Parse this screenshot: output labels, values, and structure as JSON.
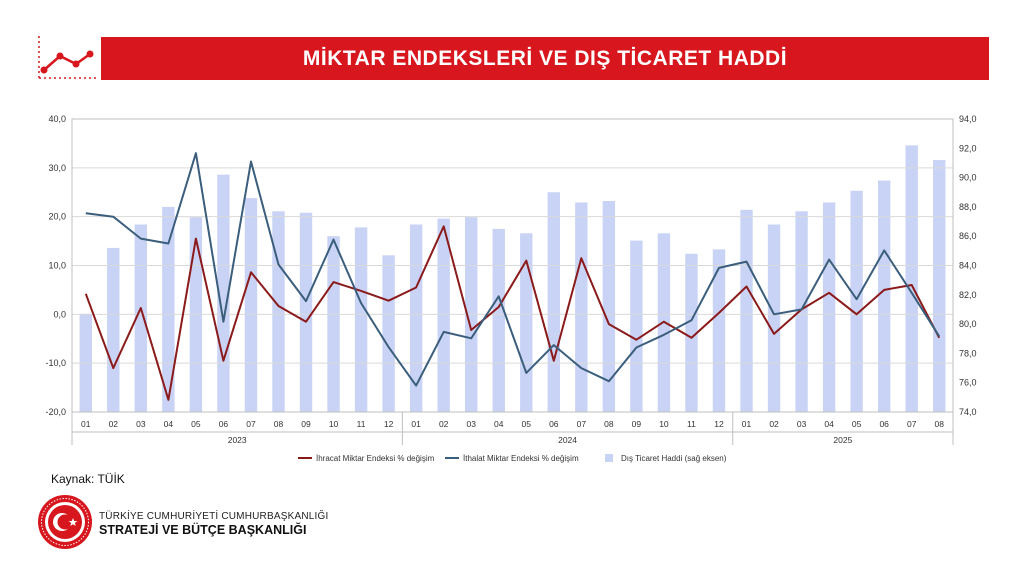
{
  "header": {
    "title": "MİKTAR ENDEKSLERİ VE DIŞ TİCARET HADDİ",
    "icon": "line-chart-icon"
  },
  "colors": {
    "accent": "#d7161d",
    "export_line": "#8b1a1a",
    "import_line": "#3b5e7d",
    "bars": "#c9d3f5"
  },
  "source": {
    "text": "Kaynak: TÜİK"
  },
  "institution": {
    "seal": "state-seal-icon",
    "line1": "TÜRKİYE CUMHURİYETİ CUMHURBAŞKANLIĞI",
    "line2": "STRATEJİ VE BÜTÇE BAŞKANLIĞI"
  },
  "chart_data": {
    "type": "bar",
    "title": "",
    "categories": [
      "01",
      "02",
      "03",
      "04",
      "05",
      "06",
      "07",
      "08",
      "09",
      "10",
      "11",
      "12",
      "01",
      "02",
      "03",
      "04",
      "05",
      "06",
      "07",
      "08",
      "09",
      "10",
      "11",
      "12",
      "01",
      "02",
      "03",
      "04",
      "05",
      "06",
      "07",
      "08"
    ],
    "year_groups": [
      {
        "label": "2023",
        "count": 12
      },
      {
        "label": "2024",
        "count": 12
      },
      {
        "label": "2025",
        "count": 8
      }
    ],
    "left_axis": {
      "ylim": [
        -20,
        40
      ],
      "ticks": [
        "-20,0",
        "-10,0",
        "0,0",
        "10,0",
        "20,0",
        "30,0",
        "40,0"
      ]
    },
    "right_axis": {
      "ylim": [
        74,
        94
      ],
      "ticks": [
        "74,0",
        "76,0",
        "78,0",
        "80,0",
        "82,0",
        "84,0",
        "86,0",
        "88,0",
        "90,0",
        "92,0",
        "94,0"
      ]
    },
    "series": [
      {
        "name": "İhracat Miktar Endeksi % değişim",
        "type": "line",
        "axis": "left",
        "values": [
          4.2,
          -11.0,
          1.3,
          -17.5,
          15.5,
          -9.5,
          8.6,
          1.7,
          -1.5,
          6.6,
          4.8,
          2.8,
          5.5,
          18.0,
          -3.2,
          1.5,
          11.0,
          -9.5,
          11.5,
          -2.0,
          -5.2,
          -1.5,
          -4.8,
          0.3,
          5.7,
          -4.0,
          1.0,
          4.4,
          0.0,
          5.0,
          6.0,
          -4.8
        ]
      },
      {
        "name": "İthalat Miktar Endeksi % değişim",
        "type": "line",
        "axis": "left",
        "values": [
          20.7,
          20.0,
          15.5,
          14.5,
          33.0,
          -1.5,
          31.3,
          10.2,
          2.7,
          15.3,
          2.3,
          -6.7,
          -14.6,
          -3.6,
          -4.9,
          3.7,
          -12.0,
          -6.3,
          -11.0,
          -13.7,
          -6.8,
          -4.2,
          -1.2,
          9.5,
          10.8,
          0.0,
          1.0,
          11.2,
          3.1,
          13.1,
          4.4,
          -4.5
        ]
      },
      {
        "name": "Dış Ticaret Haddi (sağ eksen)",
        "type": "bar",
        "axis": "right",
        "values": [
          80.7,
          85.2,
          86.8,
          88.0,
          87.3,
          90.2,
          88.6,
          87.7,
          87.6,
          86.0,
          86.6,
          84.7,
          86.8,
          87.2,
          87.3,
          86.5,
          86.2,
          89.0,
          88.3,
          88.4,
          85.7,
          86.2,
          84.8,
          85.1,
          87.8,
          86.8,
          87.7,
          88.3,
          89.1,
          89.8,
          92.2,
          91.2
        ]
      }
    ],
    "legend_position": "bottom",
    "grid": true
  }
}
